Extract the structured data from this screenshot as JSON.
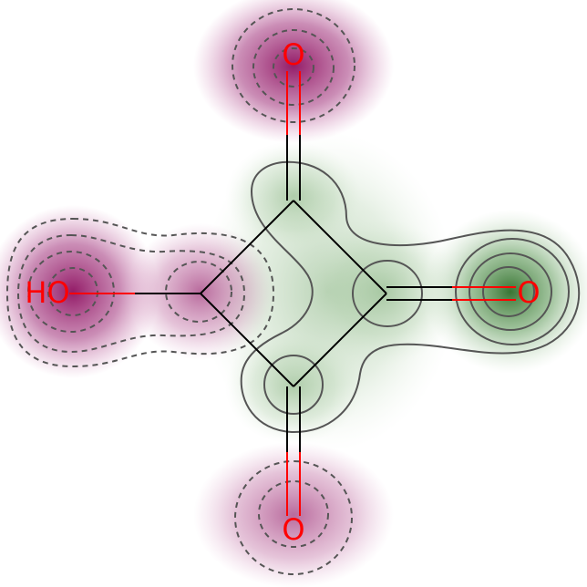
{
  "molecule": {
    "atoms": [
      {
        "id": "c_left"
      },
      {
        "id": "c_top"
      },
      {
        "id": "c_right"
      },
      {
        "id": "c_bottom"
      },
      {
        "id": "o_left",
        "label": "HO"
      },
      {
        "id": "o_top",
        "label": "O"
      },
      {
        "id": "o_right",
        "label": "O"
      },
      {
        "id": "o_bottom",
        "label": "O"
      }
    ],
    "bonds": [
      {
        "id": "ring-bond-left-top",
        "from": "c_left",
        "to": "c_top",
        "order": 1
      },
      {
        "id": "ring-bond-top-right",
        "from": "c_top",
        "to": "c_right",
        "order": 1
      },
      {
        "id": "ring-bond-right-bottom",
        "from": "c_right",
        "to": "c_bottom",
        "order": 1
      },
      {
        "id": "ring-bond-bottom-left",
        "from": "c_bottom",
        "to": "c_left",
        "order": 1
      },
      {
        "id": "bond-hydroxyl",
        "from": "c_left",
        "to": "o_left",
        "order": 1
      },
      {
        "id": "bond-carbonyl-top",
        "from": "c_top",
        "to": "o_top",
        "order": 2
      },
      {
        "id": "bond-carbonyl-right",
        "from": "c_right",
        "to": "o_right",
        "order": 2
      },
      {
        "id": "bond-carbonyl-bottom",
        "from": "c_bottom",
        "to": "o_bottom",
        "order": 2
      }
    ]
  },
  "colors": {
    "negative_contribution": "#8e1060",
    "positive_contribution": "#2f6e2a",
    "heteroatom": "#ff0000",
    "bond": "#000000",
    "contour": "#555555"
  }
}
